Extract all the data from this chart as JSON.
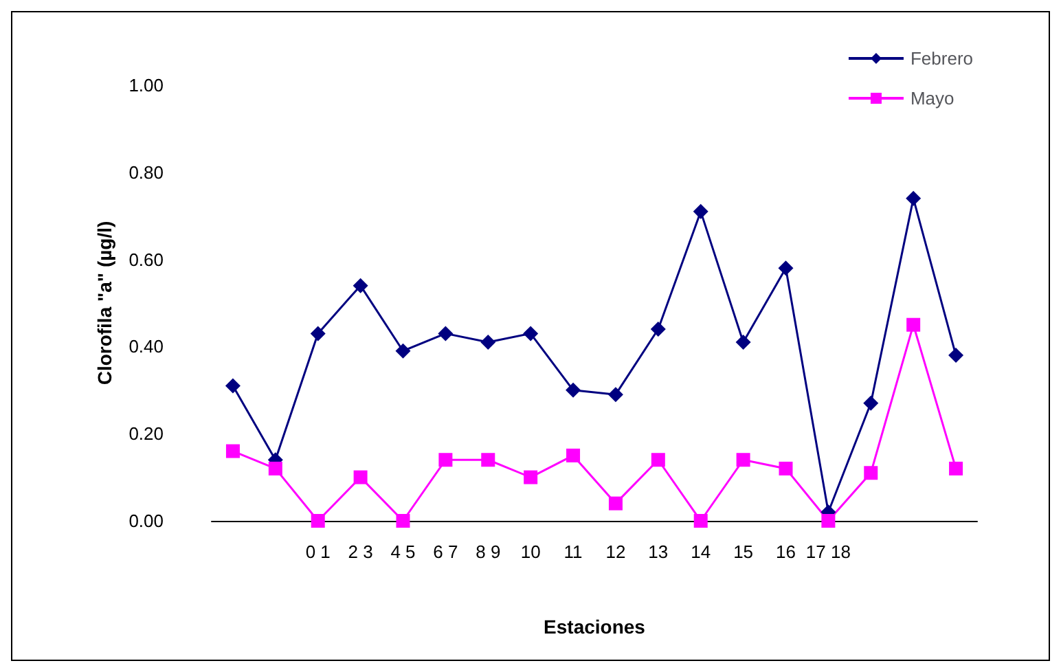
{
  "chart_data": {
    "type": "line",
    "xlabel": "Estaciones",
    "ylabel": "Clorofila \"a\" (µg/l)",
    "categories": [
      null,
      null,
      "0 1",
      "2 3",
      "4 5",
      "6 7",
      "8 9",
      "10",
      "11",
      "12",
      "13",
      "14",
      "15",
      "16",
      "17 18",
      null,
      null,
      null
    ],
    "series": [
      {
        "name": "Febrero",
        "color": "#000080",
        "marker": "diamond",
        "values": [
          0.31,
          0.14,
          0.43,
          0.54,
          0.39,
          0.43,
          0.41,
          0.43,
          0.3,
          0.29,
          0.44,
          0.71,
          0.41,
          0.58,
          0.02,
          0.27,
          0.74,
          0.38
        ]
      },
      {
        "name": "Mayo",
        "color": "#ff00ff",
        "marker": "square",
        "values": [
          0.16,
          0.12,
          0.0,
          0.1,
          0.0,
          0.14,
          0.14,
          0.1,
          0.15,
          0.04,
          0.14,
          0.0,
          0.14,
          0.12,
          0.0,
          0.11,
          0.45,
          0.12
        ]
      }
    ],
    "ylim": [
      0,
      1
    ],
    "yticks": [
      {
        "value": 0,
        "label": "0.00"
      },
      {
        "value": 0.2,
        "label": "0.20"
      },
      {
        "value": 0.4,
        "label": "0.40"
      },
      {
        "value": 0.6,
        "label": "0.60"
      },
      {
        "value": 0.8,
        "label": "0.80"
      },
      {
        "value": 1,
        "label": "1.00"
      }
    ],
    "grid": false,
    "legend": "top right"
  }
}
